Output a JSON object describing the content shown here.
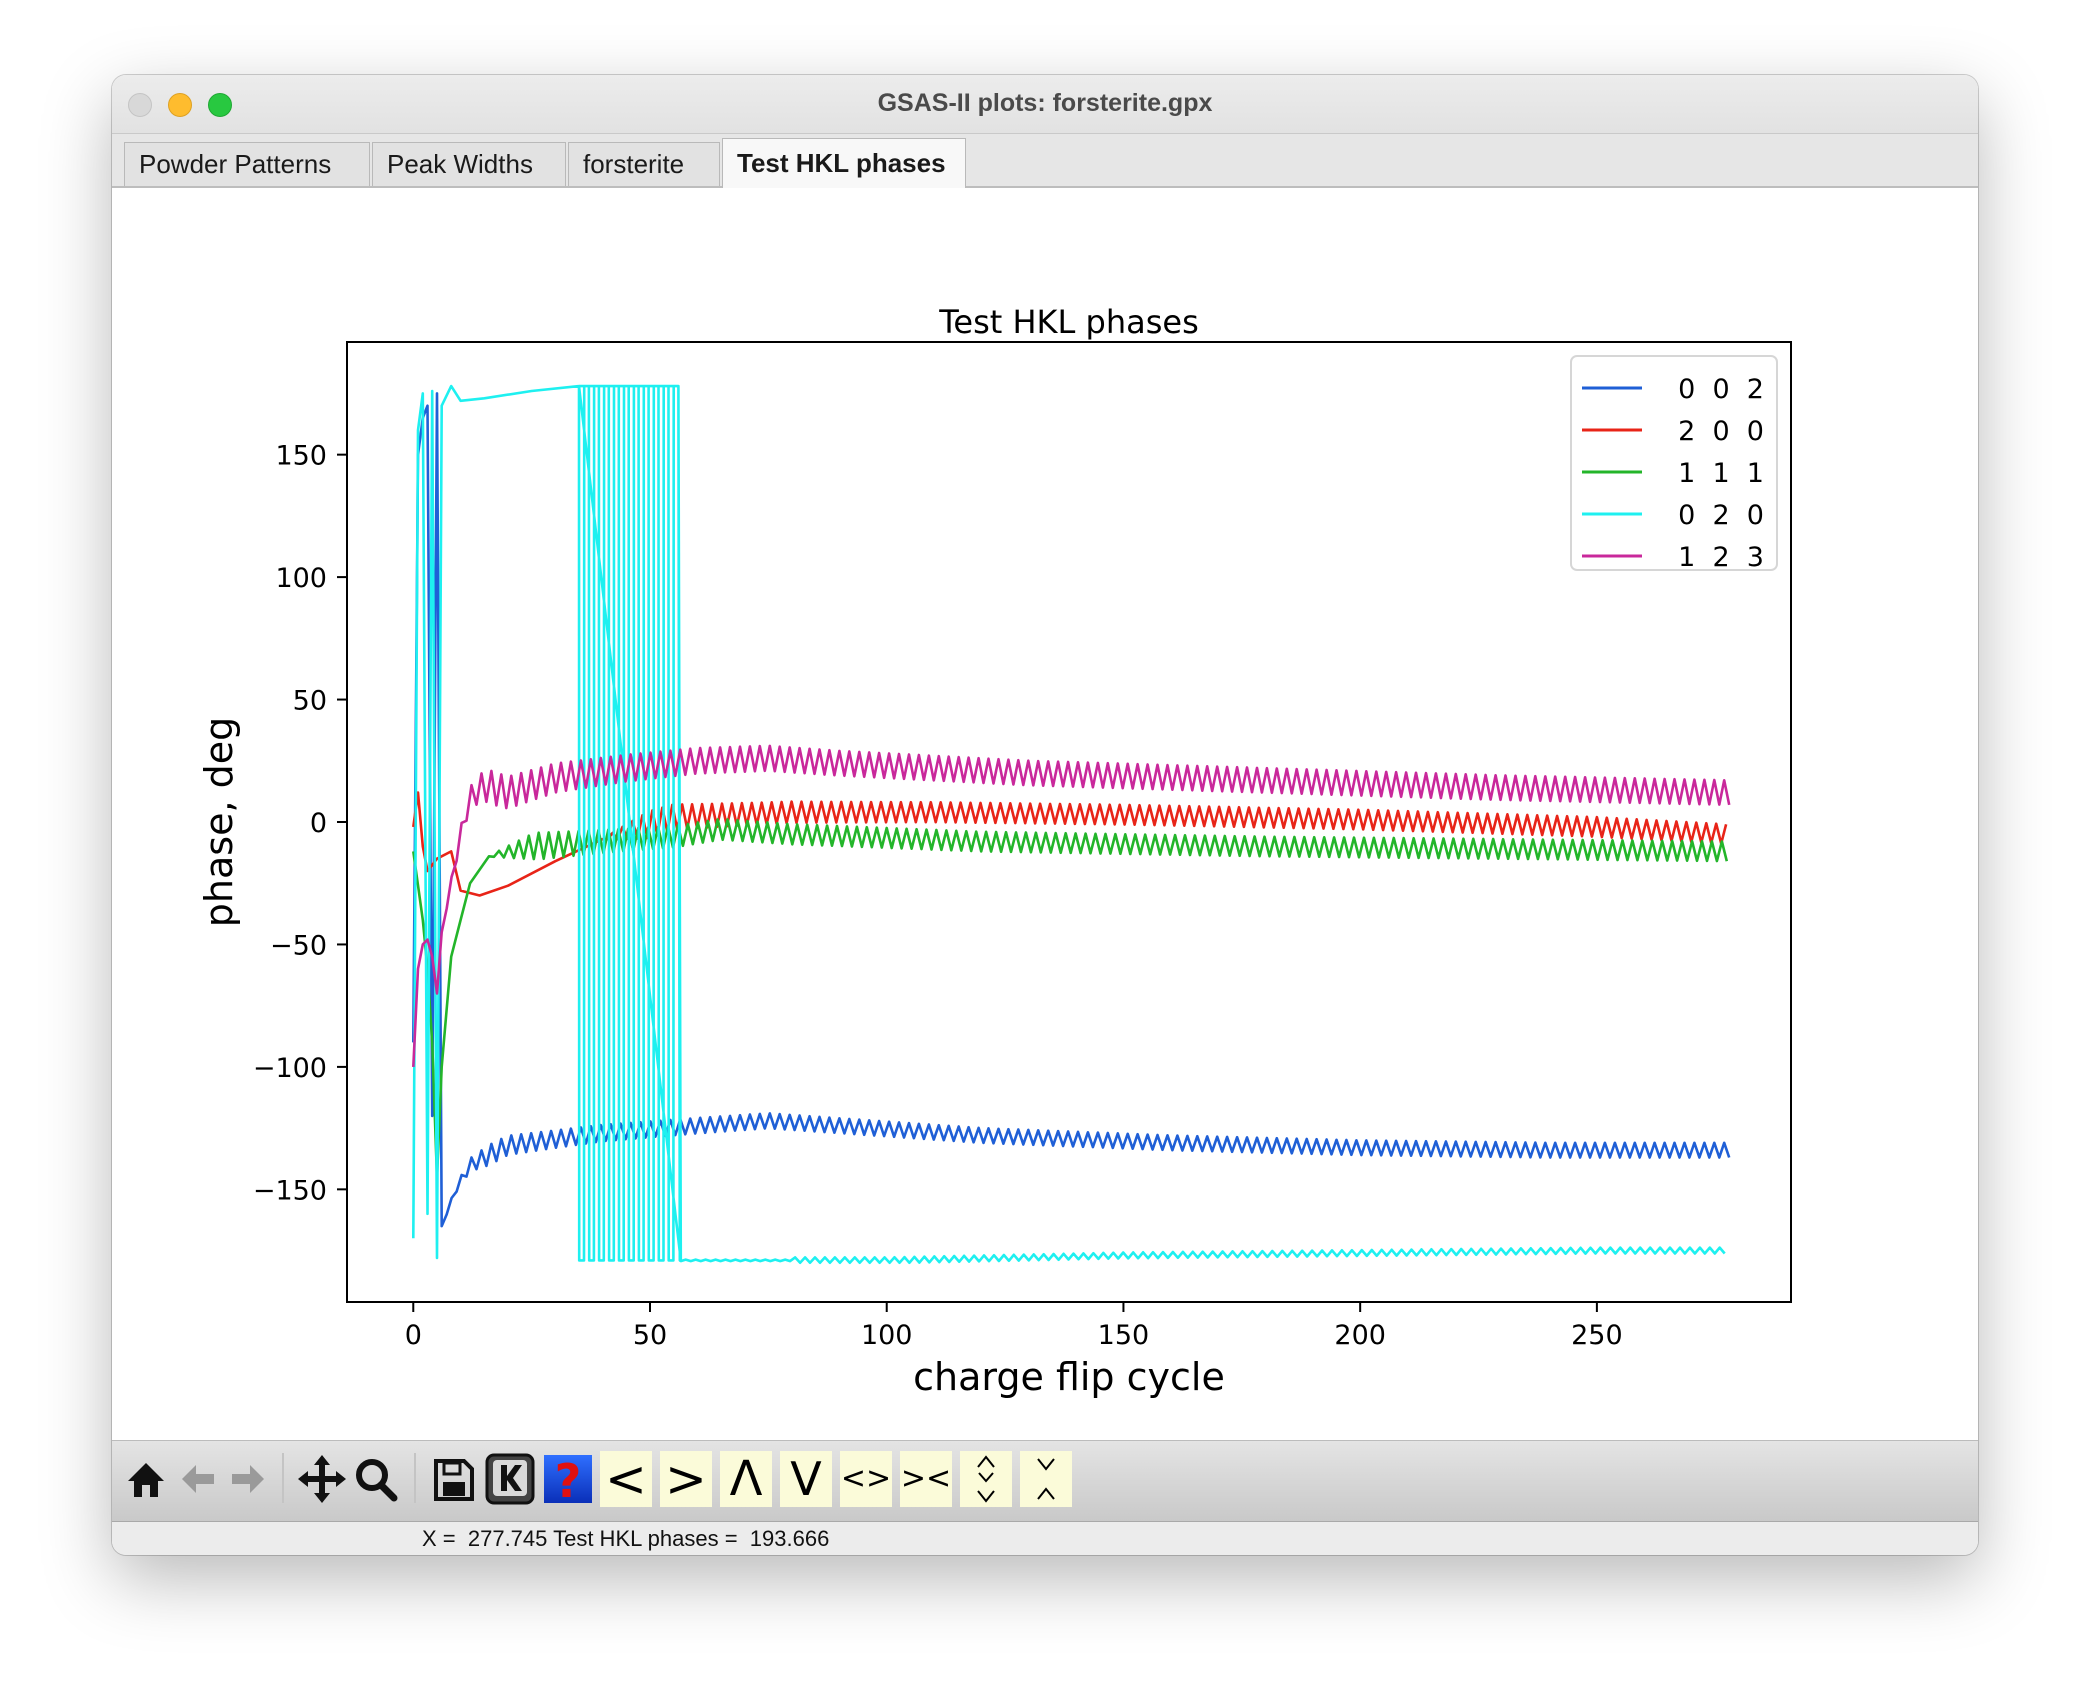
{
  "window": {
    "title": "GSAS-II plots: forsterite.gpx"
  },
  "tabs": [
    {
      "label": "Powder Patterns",
      "active": false
    },
    {
      "label": "Peak Widths",
      "active": false
    },
    {
      "label": "forsterite",
      "active": false
    },
    {
      "label": "Test HKL phases",
      "active": true
    }
  ],
  "toolbar": {
    "icons": [
      "home-icon",
      "back-arrow-icon",
      "forward-arrow-icon",
      "pan-move-icon",
      "zoom-magnifier-icon",
      "save-disk-icon",
      "keyboard-k-icon",
      "help-question-icon"
    ],
    "shift_left": "<",
    "shift_right": ">",
    "shift_up": "Λ",
    "shift_down": "V",
    "expand_x": "<>",
    "contract_x": "><"
  },
  "status": {
    "text": "X =  277.745 Test HKL phases =  193.666"
  },
  "colors": {
    "s002": "#1f5fd6",
    "s200": "#e82418",
    "s111": "#23b52a",
    "s020": "#1ef0f0",
    "s123": "#c9289b"
  },
  "chart_data": {
    "type": "line",
    "title": "Test HKL phases",
    "xlabel": "charge flip cycle",
    "ylabel": "phase, deg",
    "xlim": [
      -14,
      291
    ],
    "ylim": [
      -196,
      196
    ],
    "xticks": [
      0,
      50,
      100,
      150,
      200,
      250
    ],
    "yticks": [
      -150,
      -100,
      -50,
      0,
      50,
      100,
      150
    ],
    "xtick_labels": [
      "0",
      "50",
      "100",
      "150",
      "200",
      "250"
    ],
    "ytick_labels": [
      "−150",
      "−100",
      "−50",
      "0",
      "50",
      "100",
      "150"
    ],
    "legend_position": "top-right",
    "x_end": 278,
    "series": [
      {
        "name": "0  0  2",
        "color": "#1f5fd6",
        "trend": [
          [
            0,
            -90
          ],
          [
            1,
            150
          ],
          [
            2,
            165
          ],
          [
            3,
            170
          ],
          [
            4,
            -120
          ],
          [
            5,
            175
          ],
          [
            6,
            -165
          ],
          [
            7,
            -160
          ],
          [
            9,
            -150
          ],
          [
            12,
            -140
          ],
          [
            20,
            -132
          ],
          [
            40,
            -127
          ],
          [
            60,
            -124
          ],
          [
            75,
            -122
          ],
          [
            90,
            -124
          ],
          [
            120,
            -128
          ],
          [
            160,
            -131
          ],
          [
            200,
            -133
          ],
          [
            240,
            -134
          ],
          [
            278,
            -134
          ]
        ],
        "osc_start": 7,
        "osc_amplitude": 3,
        "osc_period": 2.1
      },
      {
        "name": "2  0  0",
        "color": "#e82418",
        "trend": [
          [
            0,
            -2
          ],
          [
            1,
            12
          ],
          [
            2,
            -10
          ],
          [
            3,
            -20
          ],
          [
            5,
            -15
          ],
          [
            8,
            -12
          ],
          [
            10,
            -28
          ],
          [
            14,
            -30
          ],
          [
            20,
            -26
          ],
          [
            30,
            -16
          ],
          [
            40,
            -7
          ],
          [
            55,
            2
          ],
          [
            80,
            4
          ],
          [
            110,
            4
          ],
          [
            150,
            3
          ],
          [
            200,
            1
          ],
          [
            250,
            -2
          ],
          [
            278,
            -5
          ]
        ],
        "osc_start": 55,
        "osc_amplitude": 4,
        "osc_period": 2.1
      },
      {
        "name": "1  1  1",
        "color": "#23b52a",
        "trend": [
          [
            0,
            -12
          ],
          [
            2,
            -40
          ],
          [
            3,
            -60
          ],
          [
            4,
            -90
          ],
          [
            5,
            -145
          ],
          [
            6,
            -100
          ],
          [
            8,
            -55
          ],
          [
            10,
            -40
          ],
          [
            12,
            -25
          ],
          [
            16,
            -14
          ],
          [
            25,
            -10
          ],
          [
            40,
            -8
          ],
          [
            55,
            -6
          ],
          [
            65,
            -3
          ],
          [
            80,
            -5
          ],
          [
            120,
            -8
          ],
          [
            180,
            -10
          ],
          [
            230,
            -11
          ],
          [
            278,
            -12
          ]
        ],
        "osc_start": 20,
        "osc_amplitude": 4,
        "osc_period": 2.1
      },
      {
        "name": "0  2  0",
        "color": "#1ef0f0",
        "trend": [
          [
            0,
            -170
          ],
          [
            1,
            160
          ],
          [
            2,
            175
          ],
          [
            3,
            -160
          ],
          [
            4,
            176
          ],
          [
            5,
            -178
          ],
          [
            6,
            170
          ],
          [
            8,
            178
          ],
          [
            10,
            172
          ],
          [
            15,
            173
          ],
          [
            25,
            176
          ],
          [
            35,
            178
          ],
          [
            56,
            178
          ],
          [
            56.5,
            -179
          ],
          [
            100,
            -179
          ],
          [
            150,
            -177
          ],
          [
            200,
            -176
          ],
          [
            250,
            -175
          ],
          [
            278,
            -175
          ]
        ],
        "osc_start": 80,
        "osc_amplitude": 1.2,
        "osc_period": 2.1,
        "spikes_start": 35,
        "spikes_end": 56,
        "spikes_period": 2.1
      },
      {
        "name": "1  2  3",
        "color": "#c9289b",
        "trend": [
          [
            0,
            -100
          ],
          [
            1,
            -60
          ],
          [
            2,
            -50
          ],
          [
            3,
            -48
          ],
          [
            4,
            -55
          ],
          [
            5,
            -70
          ],
          [
            6,
            -45
          ],
          [
            8,
            -25
          ],
          [
            10,
            -5
          ],
          [
            12,
            10
          ],
          [
            15,
            15
          ],
          [
            20,
            12
          ],
          [
            30,
            18
          ],
          [
            45,
            22
          ],
          [
            60,
            25
          ],
          [
            75,
            26
          ],
          [
            90,
            24
          ],
          [
            130,
            20
          ],
          [
            180,
            17
          ],
          [
            230,
            14
          ],
          [
            278,
            12
          ]
        ],
        "osc_start": 8,
        "osc_amplitude": 5,
        "osc_period": 2.1
      }
    ]
  }
}
